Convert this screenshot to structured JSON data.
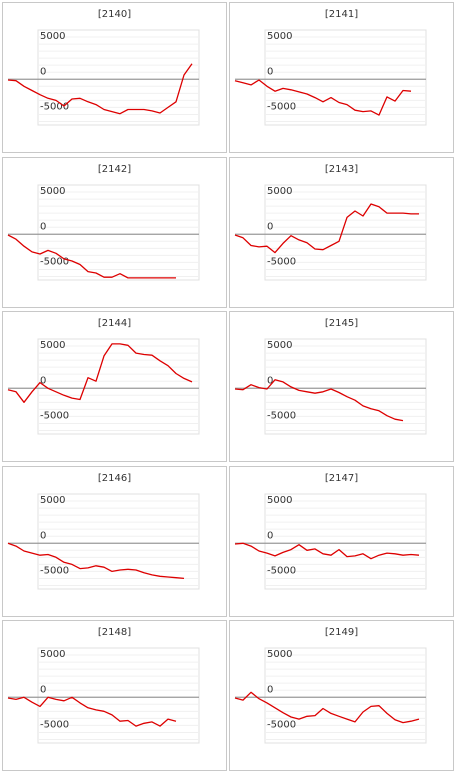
{
  "chart_data": [
    {
      "type": "line",
      "title": "[2140]",
      "ylim": [
        -6500,
        7000
      ],
      "yticks": [
        5000,
        0,
        -5000
      ],
      "color": "#dd0000",
      "values": [
        -100,
        -200,
        -1000,
        -1600,
        -2200,
        -2700,
        -3000,
        -3800,
        -2800,
        -2700,
        -3200,
        -3600,
        -4300,
        -4600,
        -4900,
        -4300,
        -4300,
        -4300,
        -4500,
        -4800,
        -4000,
        -3200,
        600,
        2200
      ]
    },
    {
      "type": "line",
      "title": "[2141]",
      "ylim": [
        -6500,
        7000
      ],
      "yticks": [
        5000,
        0,
        -5000
      ],
      "color": "#dd0000",
      "values": [
        -200,
        -500,
        -800,
        -100,
        -1000,
        -1700,
        -1300,
        -1500,
        -1800,
        -2100,
        -2600,
        -3200,
        -2600,
        -3300,
        -3600,
        -4400,
        -4600,
        -4500,
        -5100,
        -2500,
        -3100,
        -1600,
        -1700
      ]
    },
    {
      "type": "line",
      "title": "[2142]",
      "ylim": [
        -6500,
        7000
      ],
      "yticks": [
        5000,
        0,
        -5000
      ],
      "color": "#dd0000",
      "values": [
        -100,
        -700,
        -1700,
        -2500,
        -2800,
        -2300,
        -2700,
        -3500,
        -3800,
        -4300,
        -5300,
        -5500,
        -6100,
        -6100,
        -5600,
        -6200,
        -6200,
        -6200,
        -6200,
        -6200,
        -6200,
        -6200
      ]
    },
    {
      "type": "line",
      "title": "[2143]",
      "ylim": [
        -6500,
        7000
      ],
      "yticks": [
        5000,
        0,
        -5000
      ],
      "color": "#dd0000",
      "values": [
        -100,
        -500,
        -1600,
        -1800,
        -1700,
        -2600,
        -1300,
        -200,
        -800,
        -1200,
        -2100,
        -2200,
        -1600,
        -1000,
        2400,
        3300,
        2600,
        4300,
        3900,
        3000,
        3000,
        3000,
        2900,
        2900
      ]
    },
    {
      "type": "line",
      "title": "[2144]",
      "ylim": [
        -6500,
        7000
      ],
      "yticks": [
        5000,
        0,
        -5000
      ],
      "color": "#dd0000",
      "values": [
        -200,
        -500,
        -2000,
        -500,
        800,
        0,
        -500,
        -1000,
        -1400,
        -1600,
        1500,
        1000,
        4600,
        6300,
        6300,
        6100,
        5000,
        4800,
        4700,
        3900,
        3200,
        2100,
        1400,
        900
      ]
    },
    {
      "type": "line",
      "title": "[2145]",
      "ylim": [
        -6500,
        7000
      ],
      "yticks": [
        5000,
        0,
        -5000
      ],
      "color": "#dd0000",
      "values": [
        -100,
        -200,
        500,
        100,
        -100,
        1200,
        900,
        200,
        -300,
        -500,
        -700,
        -500,
        -100,
        -600,
        -1200,
        -1700,
        -2500,
        -2900,
        -3200,
        -3900,
        -4400,
        -4600
      ]
    },
    {
      "type": "line",
      "title": "[2146]",
      "ylim": [
        -6500,
        7000
      ],
      "yticks": [
        5000,
        0,
        -5000
      ],
      "color": "#dd0000",
      "values": [
        0,
        -400,
        -1100,
        -1400,
        -1700,
        -1600,
        -2000,
        -2700,
        -3000,
        -3600,
        -3500,
        -3200,
        -3400,
        -4000,
        -3800,
        -3700,
        -3800,
        -4200,
        -4500,
        -4700,
        -4800,
        -4900,
        -5000
      ]
    },
    {
      "type": "line",
      "title": "[2147]",
      "ylim": [
        -6500,
        7000
      ],
      "yticks": [
        5000,
        0,
        -5000
      ],
      "color": "#dd0000",
      "values": [
        -100,
        0,
        -400,
        -1100,
        -1400,
        -1800,
        -1300,
        -900,
        -200,
        -1000,
        -800,
        -1500,
        -1700,
        -900,
        -1900,
        -1800,
        -1500,
        -2200,
        -1700,
        -1400,
        -1500,
        -1700,
        -1600,
        -1700
      ]
    },
    {
      "type": "line",
      "title": "[2148]",
      "ylim": [
        -6500,
        7000
      ],
      "yticks": [
        5000,
        0,
        -5000
      ],
      "color": "#dd0000",
      "values": [
        -100,
        -300,
        0,
        -700,
        -1300,
        0,
        -300,
        -500,
        0,
        -800,
        -1500,
        -1800,
        -2000,
        -2500,
        -3400,
        -3300,
        -4100,
        -3700,
        -3500,
        -4100,
        -3100,
        -3400
      ]
    },
    {
      "type": "line",
      "title": "[2149]",
      "ylim": [
        -6500,
        7000
      ],
      "yticks": [
        5000,
        0,
        -5000
      ],
      "color": "#dd0000",
      "values": [
        -100,
        -400,
        700,
        -200,
        -800,
        -1500,
        -2200,
        -2800,
        -3100,
        -2700,
        -2600,
        -1600,
        -2300,
        -2700,
        -3100,
        -3500,
        -2100,
        -1300,
        -1200,
        -2300,
        -3200,
        -3600,
        -3400,
        -3100
      ]
    }
  ]
}
